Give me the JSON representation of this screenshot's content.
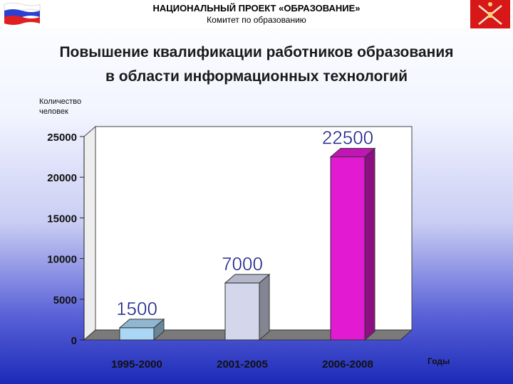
{
  "header": {
    "project": "НАЦИОНАЛЬНЫЙ ПРОЕКТ «ОБРАЗОВАНИЕ»",
    "committee": "Комитет по образованию"
  },
  "title": {
    "line1": "Повышение квалификации работников образования",
    "line2": "в области информационных технологий"
  },
  "icons": {
    "flag": "russian-flag-icon",
    "emblem": "saint-petersburg-emblem-icon"
  },
  "colors": {
    "bar1": "#a9d7f5",
    "bar2": "#d4d6ec",
    "bar3": "#e21ad2",
    "floor": "#7a7a7a"
  },
  "chart_data": {
    "type": "bar",
    "ylabel_line1": "Количество",
    "ylabel_line2": "человек",
    "xlabel": "Годы",
    "categories": [
      "1995-2000",
      "2001-2005",
      "2006-2008"
    ],
    "values": [
      1500,
      7000,
      22500
    ],
    "value_labels": [
      "1500",
      "7000",
      "22500"
    ],
    "ylim": [
      0,
      25000
    ],
    "yticks": [
      0,
      5000,
      10000,
      15000,
      20000,
      25000
    ],
    "ytick_labels": [
      "0",
      "5000",
      "10000",
      "15000",
      "20000",
      "25000"
    ],
    "grid": false,
    "style": "3d"
  }
}
